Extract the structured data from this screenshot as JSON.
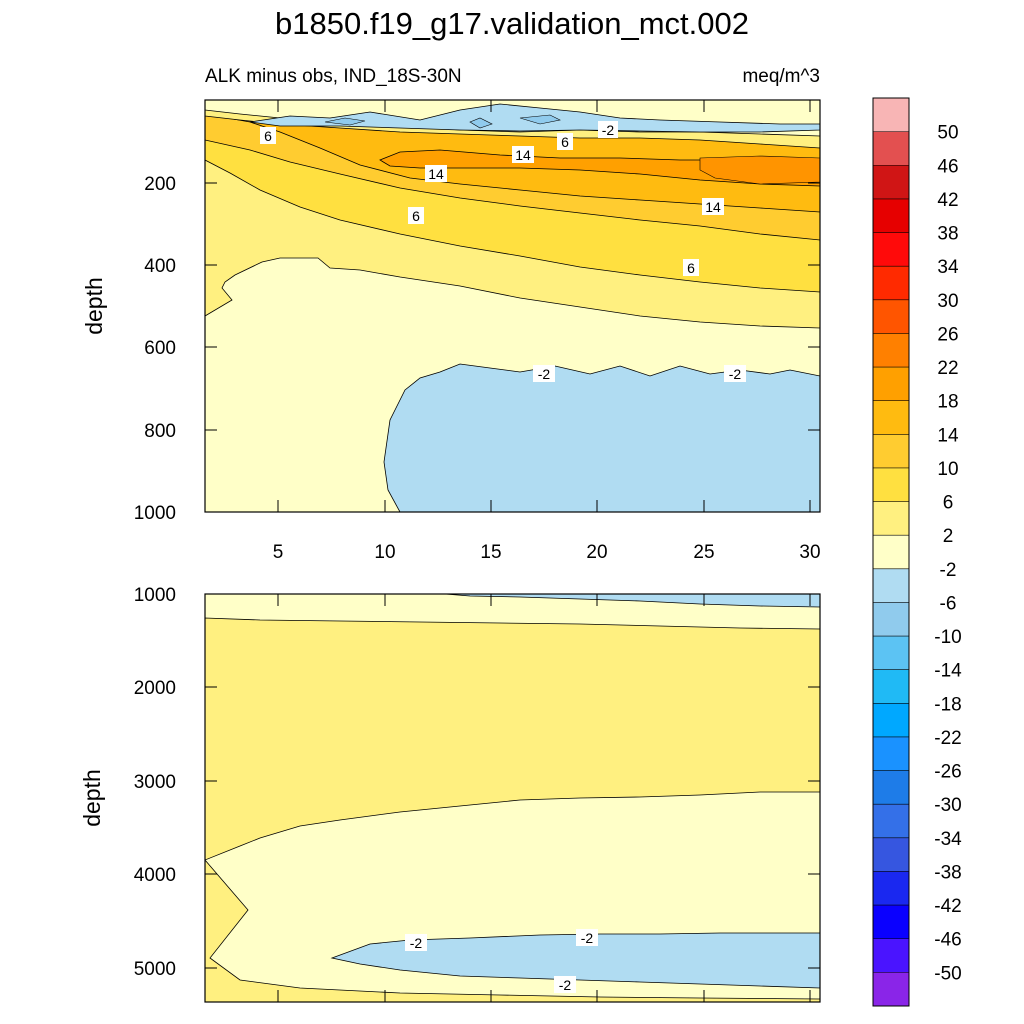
{
  "title": "b1850.f19_g17.validation_mct.002",
  "top_panel": {
    "left_label": "ALK minus obs, IND_18S-30N",
    "right_label": "meq/m^3",
    "ylabel": "depth",
    "yticks": [
      "200",
      "400",
      "600",
      "800",
      "1000"
    ],
    "xticks": [
      "5",
      "10",
      "15",
      "20",
      "25",
      "30"
    ],
    "contour_labels": [
      "6",
      "-2",
      "6",
      "14",
      "14",
      "14",
      "6",
      "6",
      "-2",
      "-2"
    ]
  },
  "bottom_panel": {
    "ylabel": "depth",
    "yticks": [
      "1000",
      "2000",
      "3000",
      "4000",
      "5000"
    ],
    "contour_labels": [
      "-2",
      "-2",
      "-2"
    ]
  },
  "colorbar": {
    "labels": [
      "50",
      "46",
      "42",
      "38",
      "34",
      "30",
      "26",
      "22",
      "18",
      "14",
      "10",
      "6",
      "2",
      "-2",
      "-6",
      "-10",
      "-14",
      "-18",
      "-22",
      "-26",
      "-30",
      "-34",
      "-38",
      "-42",
      "-46",
      "-50"
    ],
    "colors": [
      "#f8b5b5",
      "#e35050",
      "#d01515",
      "#e60000",
      "#ff0a0a",
      "#ff2a00",
      "#ff5500",
      "#ff8000",
      "#ffa000",
      "#ffbb10",
      "#ffcc30",
      "#ffe040",
      "#fff080",
      "#ffffc8",
      "#b0dcf2",
      "#90cbed",
      "#5cc3f3",
      "#20baf5",
      "#00a8ff",
      "#1a92ff",
      "#1e7ce8",
      "#3470e8",
      "#3656e0",
      "#1a28f0",
      "#0a00ff",
      "#4a14ff",
      "#8a25e8"
    ]
  },
  "chart_data": [
    {
      "type": "heatmap",
      "subtype": "filled contour",
      "title": "b1850.f19_g17.validation_mct.002",
      "left_label": "ALK minus obs, IND_18S-30N",
      "units": "meq/m^3",
      "ylabel": "depth",
      "xlabel": "",
      "xlim": [
        1.3,
        30.5
      ],
      "ylim": [
        1000,
        0
      ],
      "levels": [
        -50,
        -46,
        -42,
        -38,
        -34,
        -30,
        -26,
        -22,
        -18,
        -14,
        -10,
        -6,
        -2,
        2,
        6,
        10,
        14,
        18,
        22,
        26,
        30,
        34,
        38,
        42,
        46,
        50
      ],
      "regions": [
        {
          "depth_range": [
            20,
            60
          ],
          "value_range": [
            -10,
            -2
          ],
          "note": "near-surface negative band"
        },
        {
          "depth_range": [
            100,
            250
          ],
          "value_range": [
            14,
            22
          ],
          "note": "subsurface maximum"
        },
        {
          "depth_range": [
            250,
            480
          ],
          "value_range": [
            2,
            10
          ]
        },
        {
          "depth_range": [
            480,
            1000
          ],
          "value_range": [
            -2,
            2
          ]
        },
        {
          "depth_range": [
            650,
            1000
          ],
          "x_range": [
            11,
            30.5
          ],
          "value_range": [
            -6,
            -2
          ]
        }
      ]
    },
    {
      "type": "heatmap",
      "subtype": "filled contour",
      "ylabel": "depth",
      "ylim": [
        5400,
        1000
      ],
      "xlim": [
        1.3,
        30.5
      ],
      "regions": [
        {
          "depth_range": [
            1000,
            1300
          ],
          "value_range": [
            -2,
            2
          ]
        },
        {
          "depth_range": [
            1300,
            3500
          ],
          "value_range": [
            2,
            6
          ]
        },
        {
          "depth_range": [
            3500,
            5300
          ],
          "value_range": [
            -2,
            2
          ]
        },
        {
          "depth_range": [
            4650,
            5200
          ],
          "x_range": [
            13,
            30.5
          ],
          "value_range": [
            -6,
            -2
          ]
        }
      ]
    }
  ]
}
